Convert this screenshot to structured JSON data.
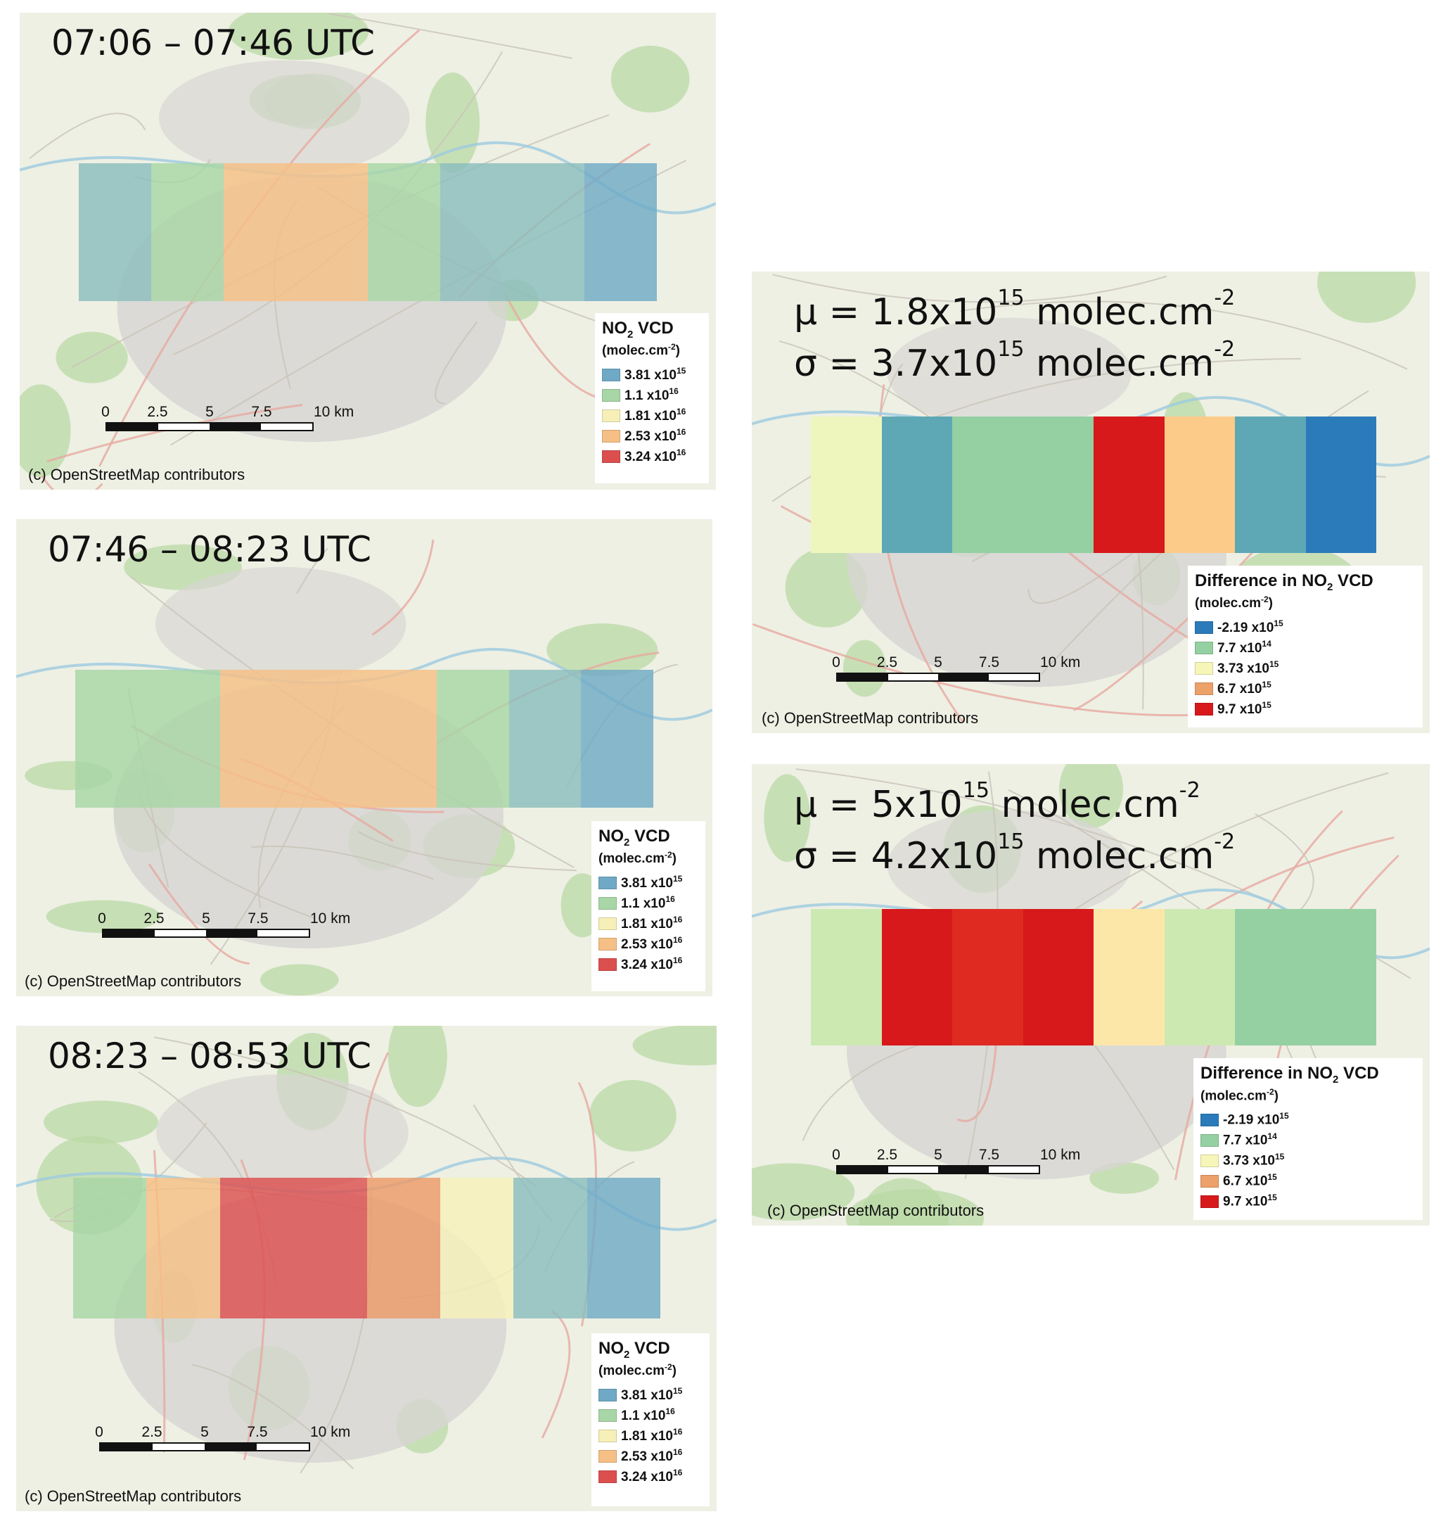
{
  "colors": {
    "blue": "#6fa9c6",
    "teal": "#8bbdbd",
    "lgreen": "#a8d6a6",
    "yellow": "#f6f0b8",
    "orange": "#f6bf85",
    "dorange": "#ec9a68",
    "red": "#dc4f4f"
  },
  "diff_colors": {
    "dblue": "#2b7bba",
    "teal": "#5ea8b5",
    "green": "#94d0a2",
    "lgreen": "#cde9b2",
    "cream": "#eef6bd",
    "peach": "#fdcb89",
    "tan": "#fde7a8",
    "red": "#d7191c",
    "red2": "#df2a22"
  },
  "vcd_legend": {
    "title_main": "NO",
    "title_sub": "2",
    "title_rest": " VCD",
    "unit_base": "(molec.cm",
    "unit_exp": "-2",
    "unit_close": ")",
    "entries": [
      {
        "mant": "3.81 x10",
        "exp": "15",
        "color": "#6fa9c6"
      },
      {
        "mant": "1.1 x10",
        "exp": "16",
        "color": "#a8d6a6"
      },
      {
        "mant": "1.81 x10",
        "exp": "16",
        "color": "#f6f0b8"
      },
      {
        "mant": "2.53 x10",
        "exp": "16",
        "color": "#f6bf85"
      },
      {
        "mant": "3.24 x10",
        "exp": "16",
        "color": "#dc4f4f"
      }
    ]
  },
  "diff_legend": {
    "title_main": "Difference in NO",
    "title_sub": "2",
    "title_rest": " VCD",
    "unit_base": "(molec.cm",
    "unit_exp": "-2",
    "unit_close": ")",
    "entries": [
      {
        "mant": "-2.19 x10",
        "exp": "15",
        "color": "#2b7bba"
      },
      {
        "mant": "7.7 x10",
        "exp": "14",
        "color": "#94d0a2"
      },
      {
        "mant": "3.73 x10",
        "exp": "15",
        "color": "#f6f6b8"
      },
      {
        "mant": "6.7 x10",
        "exp": "15",
        "color": "#eca06a"
      },
      {
        "mant": "9.7 x10",
        "exp": "15",
        "color": "#d7191c"
      }
    ]
  },
  "scalebar": {
    "ticks": [
      "0",
      "2.5",
      "5",
      "7.5",
      "10 km"
    ]
  },
  "credit": "(c) OpenStreetMap contributors",
  "panels": {
    "p1": {
      "title": "07:06 – 07:46 UTC",
      "cells": [
        "teal",
        "lgreen",
        "orange",
        "orange",
        "lgreen",
        "teal",
        "teal",
        "blue"
      ]
    },
    "p2": {
      "title": "07:46 – 08:23 UTC",
      "cells": [
        "lgreen",
        "lgreen",
        "orange",
        "orange",
        "orange",
        "lgreen",
        "teal",
        "blue"
      ]
    },
    "p3": {
      "title": "08:23 – 08:53 UTC",
      "cells": [
        "lgreen",
        "orange",
        "red",
        "red",
        "dorange",
        "yellow",
        "teal",
        "blue"
      ]
    },
    "d1": {
      "mu_pre": "μ = 1.8x10",
      "mu_exp": "15",
      "mu_post": " molec.cm",
      "mu_unit_exp": "-2",
      "sigma_pre": "σ = 3.7x10",
      "sigma_exp": "15",
      "sigma_post": " molec.cm",
      "sigma_unit_exp": "-2",
      "cells": [
        "cream",
        "teal",
        "green",
        "green",
        "red",
        "peach",
        "teal",
        "dblue"
      ]
    },
    "d2": {
      "mu_pre": "μ = 5x10",
      "mu_exp": "15",
      "mu_post": " molec.cm",
      "mu_unit_exp": "-2",
      "sigma_pre": "σ = 4.2x10",
      "sigma_exp": "15",
      "sigma_post": " molec.cm",
      "sigma_unit_exp": "-2",
      "cells": [
        "lgreen",
        "red",
        "red2",
        "red",
        "tan",
        "lgreen",
        "green",
        "green"
      ]
    }
  }
}
